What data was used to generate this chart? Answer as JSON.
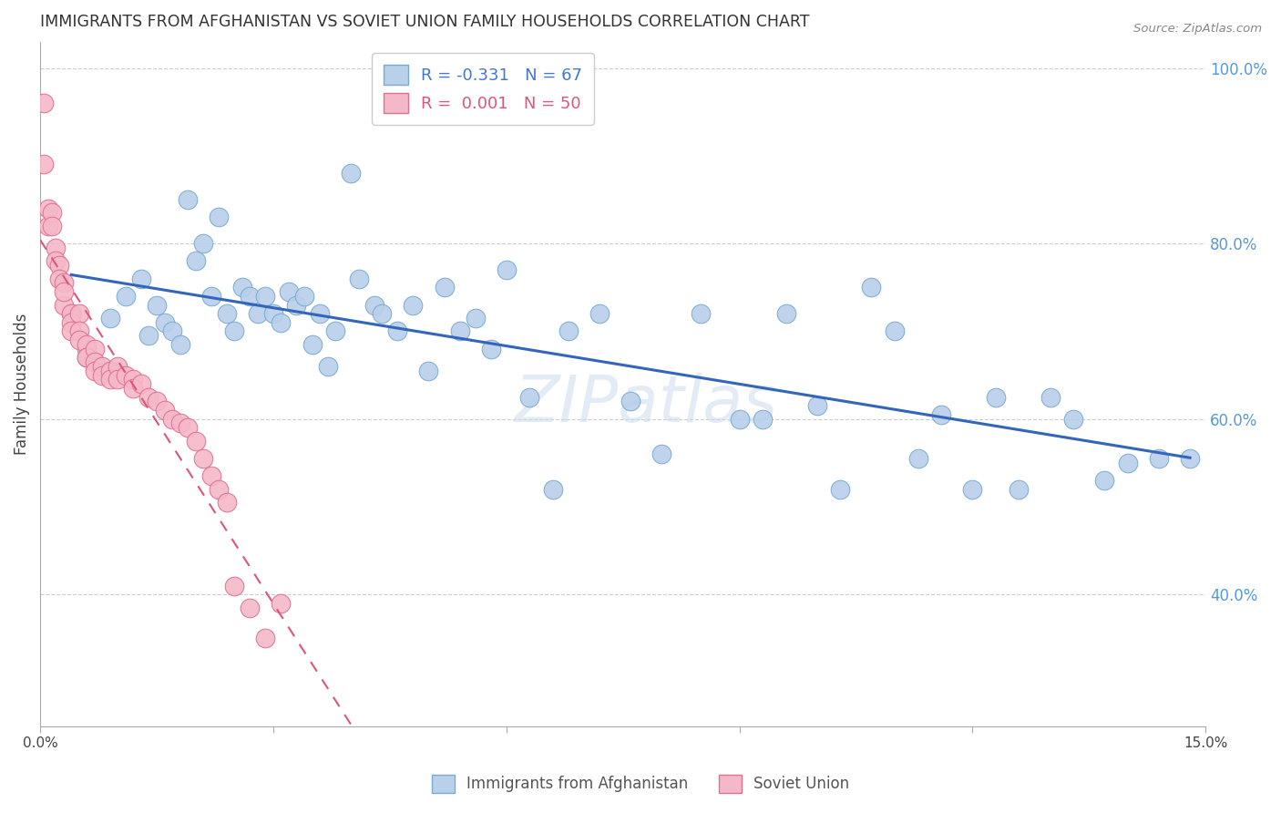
{
  "title": "IMMIGRANTS FROM AFGHANISTAN VS SOVIET UNION FAMILY HOUSEHOLDS CORRELATION CHART",
  "source": "Source: ZipAtlas.com",
  "ylabel": "Family Households",
  "xlim": [
    0.0,
    0.15
  ],
  "ylim": [
    0.25,
    1.03
  ],
  "right_yticks": [
    1.0,
    0.8,
    0.6,
    0.4
  ],
  "right_yticklabels": [
    "100.0%",
    "80.0%",
    "60.0%",
    "40.0%"
  ],
  "xticks": [
    0.0,
    0.03,
    0.06,
    0.09,
    0.12,
    0.15
  ],
  "xticklabels": [
    "0.0%",
    "",
    "",
    "",
    "",
    "15.0%"
  ],
  "afghanistan_color": "#b8d0ea",
  "afghanistan_edge": "#7aaad0",
  "soviet_color": "#f5b8c8",
  "soviet_edge": "#e07090",
  "trendline_afghanistan_color": "#3366bb",
  "trendline_soviet_color": "#dd5577",
  "watermark": "ZIPatlas",
  "afghanistan_x": [
    0.004,
    0.006,
    0.009,
    0.011,
    0.013,
    0.014,
    0.015,
    0.016,
    0.017,
    0.018,
    0.019,
    0.02,
    0.021,
    0.022,
    0.023,
    0.024,
    0.025,
    0.026,
    0.027,
    0.028,
    0.029,
    0.03,
    0.031,
    0.032,
    0.033,
    0.034,
    0.035,
    0.036,
    0.037,
    0.038,
    0.04,
    0.041,
    0.043,
    0.044,
    0.046,
    0.048,
    0.05,
    0.052,
    0.054,
    0.056,
    0.058,
    0.06,
    0.063,
    0.066,
    0.068,
    0.072,
    0.076,
    0.08,
    0.085,
    0.09,
    0.093,
    0.096,
    0.1,
    0.103,
    0.107,
    0.11,
    0.113,
    0.116,
    0.12,
    0.123,
    0.126,
    0.13,
    0.133,
    0.137,
    0.14,
    0.144,
    0.148
  ],
  "afghanistan_y": [
    0.72,
    0.68,
    0.715,
    0.74,
    0.76,
    0.695,
    0.73,
    0.71,
    0.7,
    0.685,
    0.85,
    0.78,
    0.8,
    0.74,
    0.83,
    0.72,
    0.7,
    0.75,
    0.74,
    0.72,
    0.74,
    0.72,
    0.71,
    0.745,
    0.73,
    0.74,
    0.685,
    0.72,
    0.66,
    0.7,
    0.88,
    0.76,
    0.73,
    0.72,
    0.7,
    0.73,
    0.655,
    0.75,
    0.7,
    0.715,
    0.68,
    0.77,
    0.625,
    0.52,
    0.7,
    0.72,
    0.62,
    0.56,
    0.72,
    0.6,
    0.6,
    0.72,
    0.615,
    0.52,
    0.75,
    0.7,
    0.555,
    0.605,
    0.52,
    0.625,
    0.52,
    0.625,
    0.6,
    0.53,
    0.55,
    0.555,
    0.555
  ],
  "soviet_x": [
    0.0005,
    0.0005,
    0.001,
    0.001,
    0.0015,
    0.0015,
    0.002,
    0.002,
    0.0025,
    0.0025,
    0.003,
    0.003,
    0.003,
    0.004,
    0.004,
    0.004,
    0.005,
    0.005,
    0.005,
    0.006,
    0.006,
    0.006,
    0.007,
    0.007,
    0.007,
    0.008,
    0.008,
    0.009,
    0.009,
    0.01,
    0.01,
    0.011,
    0.012,
    0.012,
    0.013,
    0.014,
    0.015,
    0.016,
    0.017,
    0.018,
    0.019,
    0.02,
    0.021,
    0.022,
    0.023,
    0.024,
    0.025,
    0.027,
    0.029,
    0.031
  ],
  "soviet_y": [
    0.96,
    0.89,
    0.84,
    0.82,
    0.835,
    0.82,
    0.795,
    0.78,
    0.775,
    0.76,
    0.755,
    0.73,
    0.745,
    0.72,
    0.71,
    0.7,
    0.72,
    0.7,
    0.69,
    0.685,
    0.67,
    0.67,
    0.68,
    0.665,
    0.655,
    0.66,
    0.65,
    0.655,
    0.645,
    0.66,
    0.645,
    0.65,
    0.645,
    0.635,
    0.64,
    0.625,
    0.62,
    0.61,
    0.6,
    0.595,
    0.59,
    0.575,
    0.555,
    0.535,
    0.52,
    0.505,
    0.41,
    0.385,
    0.35,
    0.39
  ],
  "soviet_trendline_x": [
    0.0005,
    0.031
  ],
  "soviet_trendline_extend_x": 0.15,
  "afghanistan_trendline_start": 0.004,
  "afghanistan_trendline_end": 0.148
}
